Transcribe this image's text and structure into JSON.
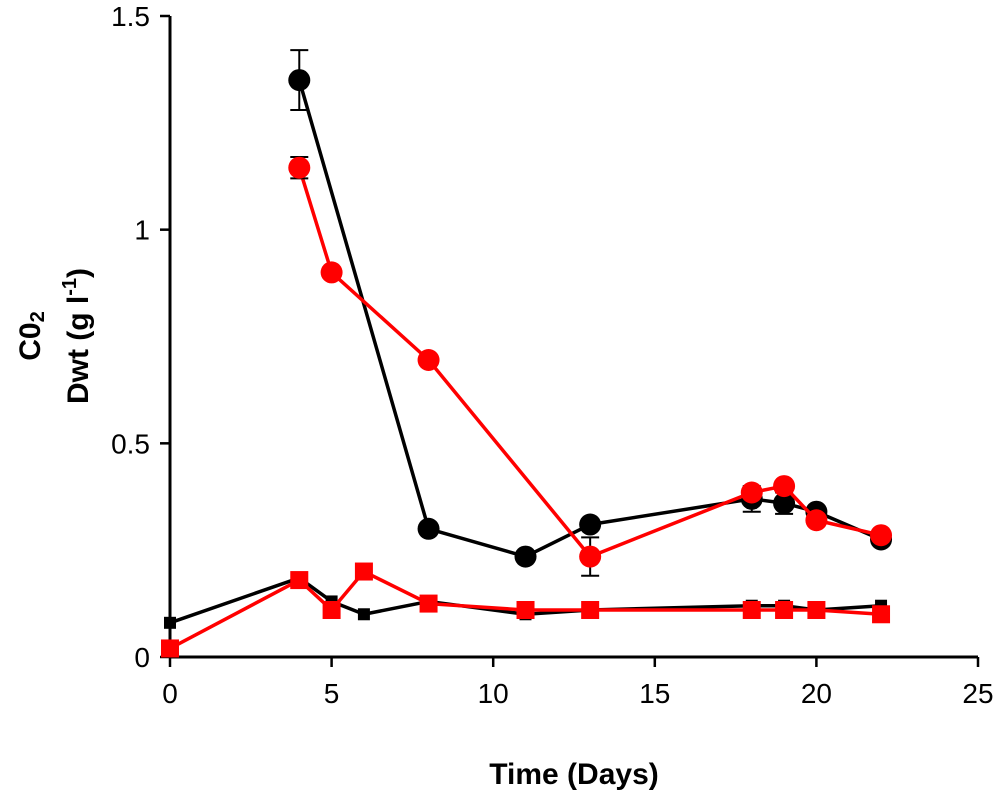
{
  "chart_data": {
    "type": "line",
    "xlabel": "Time (Days)",
    "ylabel_line1": "C0",
    "ylabel_line1_sub": "2",
    "ylabel_line2": "Dwt (g l",
    "ylabel_line2_sup": "-1",
    "ylabel_line2_end": ")",
    "xlim": [
      0,
      25
    ],
    "ylim": [
      0,
      1.5
    ],
    "x_ticks": [
      0,
      5,
      10,
      15,
      20,
      25
    ],
    "x_tick_labels": [
      "0",
      "5",
      "10",
      "15",
      "20",
      "25"
    ],
    "y_ticks": [
      0,
      0.5,
      1,
      1.5
    ],
    "y_tick_labels": [
      "0",
      "0.5",
      "1",
      "1.5"
    ],
    "grid": false,
    "series": [
      {
        "color": "#000000",
        "marker": "circle",
        "x": [
          4,
          8,
          11,
          13,
          18,
          19,
          20,
          22
        ],
        "y": [
          1.35,
          0.3,
          0.235,
          0.31,
          0.37,
          0.36,
          0.34,
          0.275
        ],
        "err": [
          0.07,
          0,
          0,
          0,
          0.03,
          0.025,
          0,
          0
        ]
      },
      {
        "color": "#ff0000",
        "marker": "circle",
        "x": [
          4,
          5,
          8,
          13,
          18,
          19,
          20,
          22
        ],
        "y": [
          1.145,
          0.9,
          0.695,
          0.235,
          0.385,
          0.4,
          0.32,
          0.285
        ],
        "err": [
          0.025,
          0,
          0,
          0.045,
          0,
          0,
          0,
          0
        ]
      },
      {
        "color": "#000000",
        "marker": "square-small",
        "x": [
          0,
          4,
          5,
          6,
          8,
          11,
          13,
          18,
          19,
          20,
          22
        ],
        "y": [
          0.08,
          0.185,
          0.13,
          0.1,
          0.13,
          0.1,
          0.11,
          0.12,
          0.12,
          0.11,
          0.12
        ],
        "err": [
          0,
          0,
          0,
          0,
          0,
          0,
          0,
          0,
          0,
          0,
          0
        ]
      },
      {
        "color": "#ff0000",
        "marker": "square",
        "x": [
          0,
          4,
          5,
          6,
          8,
          11,
          13,
          18,
          19,
          20,
          22
        ],
        "y": [
          0.02,
          0.18,
          0.11,
          0.2,
          0.125,
          0.11,
          0.11,
          0.11,
          0.11,
          0.11,
          0.1
        ],
        "err": [
          0,
          0,
          0,
          0,
          0,
          0,
          0,
          0,
          0,
          0,
          0
        ]
      }
    ]
  }
}
